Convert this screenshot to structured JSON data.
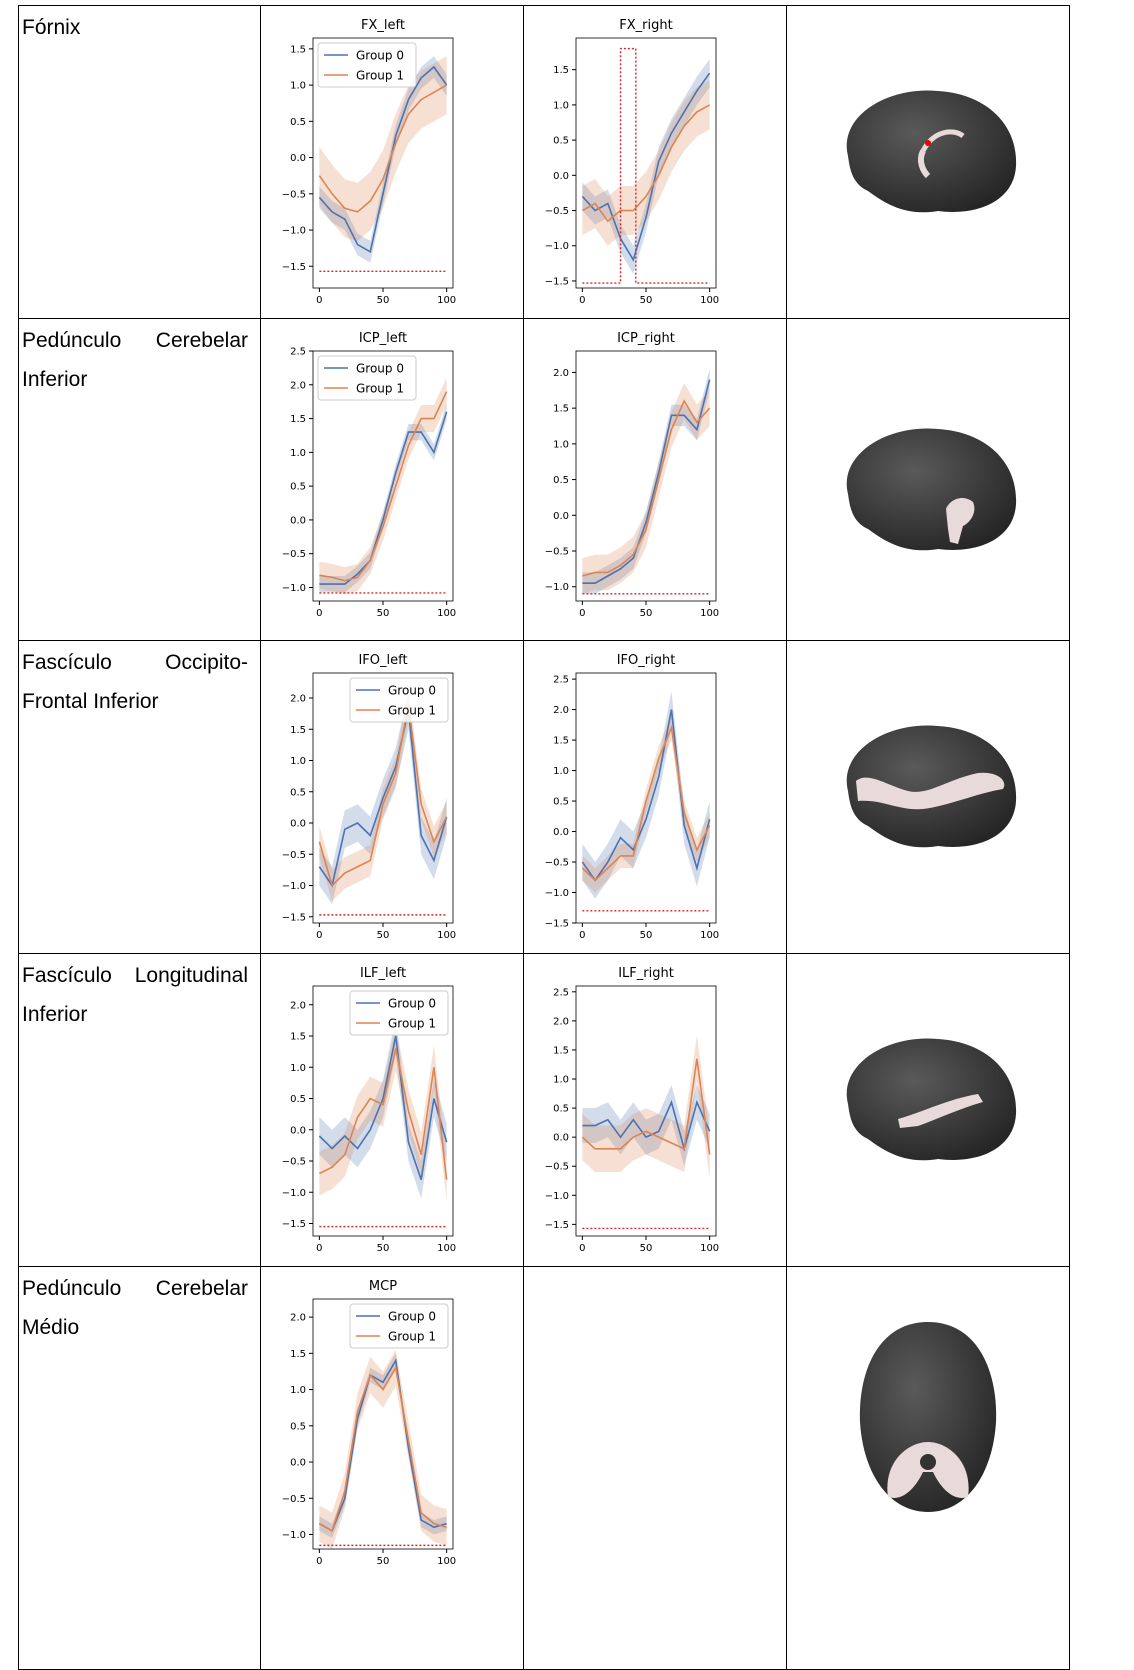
{
  "table": {
    "rows": [
      {
        "label": "Fórnix"
      },
      {
        "label": "Pedúnculo Cerebelar Inferior"
      },
      {
        "label": "Fascículo Occipito-Frontal Inferior"
      },
      {
        "label": "Fascículo Longitudinal Inferior"
      },
      {
        "label": "Pedúnculo Cerebelar Médio"
      }
    ]
  },
  "chart_data": [
    {
      "type": "line",
      "title": "FX_left",
      "x": [
        0,
        10,
        20,
        30,
        40,
        50,
        60,
        70,
        80,
        90,
        100
      ],
      "xlim": [
        -5,
        105
      ],
      "xticks": [
        0,
        50,
        100
      ],
      "ylim": [
        -1.8,
        1.65
      ],
      "yticks": [
        {
          "value": -1.5,
          "label": "−1.5"
        },
        {
          "value": -1,
          "label": "−1.0"
        },
        {
          "value": -0.5,
          "label": "−0.5"
        },
        {
          "value": 0,
          "label": "0.0"
        },
        0.5,
        {
          "value": 1,
          "label": "1.0"
        },
        1.5
      ],
      "legend": "upper left",
      "series": [
        {
          "name": "Group 0",
          "color": "#4c72b0",
          "values": [
            -0.55,
            -0.75,
            -0.85,
            -1.2,
            -1.3,
            -0.5,
            0.3,
            0.8,
            1.1,
            1.25,
            1.0
          ],
          "errors": [
            0.15,
            0.15,
            0.15,
            0.15,
            0.15,
            0.15,
            0.15,
            0.15,
            0.15,
            0.15,
            0.15
          ]
        },
        {
          "name": "Group 1",
          "color": "#dd8452",
          "values": [
            -0.25,
            -0.5,
            -0.7,
            -0.75,
            -0.6,
            -0.3,
            0.2,
            0.6,
            0.8,
            0.9,
            1.0
          ],
          "errors": [
            0.4,
            0.4,
            0.4,
            0.4,
            0.4,
            0.4,
            0.4,
            0.4,
            0.4,
            0.4,
            0.4
          ]
        }
      ],
      "threshold": {
        "color": "#d62728",
        "x": [
          0,
          100
        ],
        "values": [
          -1.57,
          -1.57
        ]
      }
    },
    {
      "type": "line",
      "title": "FX_right",
      "x": [
        0,
        10,
        20,
        30,
        40,
        50,
        60,
        70,
        80,
        90,
        100
      ],
      "xlim": [
        -5,
        105
      ],
      "xticks": [
        0,
        50,
        100
      ],
      "ylim": [
        -1.6,
        1.95
      ],
      "yticks": [
        {
          "value": -1.5,
          "label": "−1.5"
        },
        {
          "value": -1,
          "label": "−1.0"
        },
        {
          "value": -0.5,
          "label": "−0.5"
        },
        {
          "value": 0,
          "label": "0.0"
        },
        0.5,
        {
          "value": 1,
          "label": "1.0"
        },
        1.5
      ],
      "legend": "none",
      "series": [
        {
          "name": "Group 0",
          "color": "#4c72b0",
          "values": [
            -0.3,
            -0.5,
            -0.4,
            -0.9,
            -1.2,
            -0.6,
            0.2,
            0.6,
            0.9,
            1.2,
            1.45
          ],
          "errors": [
            0.2,
            0.2,
            0.2,
            0.2,
            0.2,
            0.2,
            0.2,
            0.2,
            0.2,
            0.2,
            0.2
          ]
        },
        {
          "name": "Group 1",
          "color": "#dd8452",
          "values": [
            -0.5,
            -0.4,
            -0.65,
            -0.5,
            -0.5,
            -0.3,
            0,
            0.4,
            0.7,
            0.9,
            1.0
          ],
          "errors": [
            0.35,
            0.35,
            0.35,
            0.35,
            0.35,
            0.35,
            0.35,
            0.35,
            0.35,
            0.35,
            0.35
          ]
        }
      ],
      "threshold": {
        "color": "#d62728",
        "x": [
          0,
          30,
          30,
          42,
          42,
          100
        ],
        "values": [
          -1.53,
          -1.53,
          1.8,
          1.8,
          -1.53,
          -1.53
        ]
      }
    },
    {
      "type": "line",
      "title": "ICP_left",
      "x": [
        0,
        10,
        20,
        30,
        40,
        50,
        60,
        70,
        80,
        90,
        100
      ],
      "xlim": [
        -5,
        105
      ],
      "xticks": [
        0,
        50,
        100
      ],
      "ylim": [
        -1.2,
        2.5
      ],
      "yticks": [
        {
          "value": -1,
          "label": "−1.0"
        },
        {
          "value": -0.5,
          "label": "−0.5"
        },
        {
          "value": 0,
          "label": "0.0"
        },
        0.5,
        {
          "value": 1,
          "label": "1.0"
        },
        1.5,
        {
          "value": 2,
          "label": "2.0"
        },
        2.5
      ],
      "legend": "upper left",
      "series": [
        {
          "name": "Group 0",
          "color": "#4c72b0",
          "values": [
            -0.95,
            -0.95,
            -0.95,
            -0.8,
            -0.6,
            0,
            0.7,
            1.3,
            1.3,
            1.0,
            1.6
          ],
          "errors": [
            0.12,
            0.12,
            0.12,
            0.12,
            0.12,
            0.12,
            0.12,
            0.12,
            0.12,
            0.12,
            0.12
          ]
        },
        {
          "name": "Group 1",
          "color": "#dd8452",
          "values": [
            -0.82,
            -0.85,
            -0.9,
            -0.85,
            -0.6,
            -0.1,
            0.5,
            1.1,
            1.5,
            1.5,
            1.9
          ],
          "errors": [
            0.2,
            0.2,
            0.2,
            0.2,
            0.2,
            0.2,
            0.2,
            0.2,
            0.2,
            0.2,
            0.2
          ]
        }
      ],
      "threshold": {
        "color": "#d62728",
        "x": [
          0,
          100
        ],
        "values": [
          -1.08,
          -1.08
        ]
      }
    },
    {
      "type": "line",
      "title": "ICP_right",
      "x": [
        0,
        10,
        20,
        30,
        40,
        50,
        60,
        70,
        80,
        90,
        100
      ],
      "xlim": [
        -5,
        105
      ],
      "xticks": [
        0,
        50,
        100
      ],
      "ylim": [
        -1.2,
        2.3
      ],
      "yticks": [
        {
          "value": -1,
          "label": "−1.0"
        },
        {
          "value": -0.5,
          "label": "−0.5"
        },
        {
          "value": 0,
          "label": "0.0"
        },
        0.5,
        {
          "value": 1,
          "label": "1.0"
        },
        1.5,
        {
          "value": 2,
          "label": "2.0"
        }
      ],
      "legend": "none",
      "series": [
        {
          "name": "Group 0",
          "color": "#4c72b0",
          "values": [
            -0.95,
            -0.95,
            -0.85,
            -0.75,
            -0.6,
            -0.1,
            0.6,
            1.4,
            1.4,
            1.2,
            1.9
          ],
          "errors": [
            0.15,
            0.15,
            0.15,
            0.15,
            0.15,
            0.15,
            0.15,
            0.15,
            0.15,
            0.15,
            0.15
          ]
        },
        {
          "name": "Group 1",
          "color": "#dd8452",
          "values": [
            -0.85,
            -0.8,
            -0.8,
            -0.7,
            -0.55,
            -0.2,
            0.5,
            1.2,
            1.6,
            1.3,
            1.5
          ],
          "errors": [
            0.25,
            0.25,
            0.25,
            0.25,
            0.25,
            0.25,
            0.25,
            0.25,
            0.25,
            0.25,
            0.25
          ]
        }
      ],
      "threshold": {
        "color": "#d62728",
        "x": [
          0,
          100
        ],
        "values": [
          -1.1,
          -1.1
        ]
      }
    },
    {
      "type": "line",
      "title": "IFO_left",
      "x": [
        0,
        10,
        20,
        30,
        40,
        50,
        60,
        70,
        80,
        90,
        100
      ],
      "xlim": [
        -5,
        105
      ],
      "xticks": [
        0,
        50,
        100
      ],
      "ylim": [
        -1.6,
        2.4
      ],
      "yticks": [
        {
          "value": -1.5,
          "label": "−1.5"
        },
        {
          "value": -1,
          "label": "−1.0"
        },
        {
          "value": -0.5,
          "label": "−0.5"
        },
        {
          "value": 0,
          "label": "0.0"
        },
        0.5,
        {
          "value": 1,
          "label": "1.0"
        },
        1.5,
        {
          "value": 2,
          "label": "2.0"
        }
      ],
      "legend": "upper right",
      "series": [
        {
          "name": "Group 0",
          "color": "#4c72b0",
          "values": [
            -0.7,
            -1.0,
            -0.1,
            0,
            -0.2,
            0.4,
            0.9,
            1.8,
            -0.2,
            -0.6,
            0.1
          ],
          "errors": [
            0.3,
            0.3,
            0.3,
            0.3,
            0.3,
            0.3,
            0.3,
            0.3,
            0.3,
            0.3,
            0.3
          ]
        },
        {
          "name": "Group 1",
          "color": "#dd8452",
          "values": [
            -0.3,
            -1.0,
            -0.8,
            -0.7,
            -0.6,
            0.3,
            0.8,
            1.9,
            0.3,
            -0.3,
            0.1
          ],
          "errors": [
            0.25,
            0.25,
            0.25,
            0.25,
            0.25,
            0.25,
            0.25,
            0.25,
            0.25,
            0.25,
            0.25
          ]
        }
      ],
      "threshold": {
        "color": "#d62728",
        "x": [
          0,
          100
        ],
        "values": [
          -1.47,
          -1.47
        ]
      }
    },
    {
      "type": "line",
      "title": "IFO_right",
      "x": [
        0,
        10,
        20,
        30,
        40,
        50,
        60,
        70,
        80,
        90,
        100
      ],
      "xlim": [
        -5,
        105
      ],
      "xticks": [
        0,
        50,
        100
      ],
      "ylim": [
        -1.5,
        2.6
      ],
      "yticks": [
        {
          "value": -1.5,
          "label": "−1.5"
        },
        {
          "value": -1,
          "label": "−1.0"
        },
        {
          "value": -0.5,
          "label": "−0.5"
        },
        {
          "value": 0,
          "label": "0.0"
        },
        0.5,
        {
          "value": 1,
          "label": "1.0"
        },
        1.5,
        {
          "value": 2,
          "label": "2.0"
        },
        2.5
      ],
      "legend": "none",
      "series": [
        {
          "name": "Group 0",
          "color": "#4c72b0",
          "values": [
            -0.5,
            -0.8,
            -0.5,
            -0.1,
            -0.3,
            0.2,
            0.9,
            2.0,
            0.1,
            -0.6,
            0.2
          ],
          "errors": [
            0.3,
            0.3,
            0.3,
            0.3,
            0.3,
            0.3,
            0.3,
            0.3,
            0.3,
            0.3,
            0.3
          ]
        },
        {
          "name": "Group 1",
          "color": "#dd8452",
          "values": [
            -0.6,
            -0.8,
            -0.6,
            -0.4,
            -0.4,
            0.5,
            1.2,
            1.7,
            0.3,
            -0.3,
            0.1
          ],
          "errors": [
            0.2,
            0.2,
            0.2,
            0.2,
            0.2,
            0.2,
            0.2,
            0.2,
            0.2,
            0.2,
            0.2
          ]
        }
      ],
      "threshold": {
        "color": "#d62728",
        "x": [
          0,
          100
        ],
        "values": [
          -1.3,
          -1.3
        ]
      }
    },
    {
      "type": "line",
      "title": "ILF_left",
      "x": [
        0,
        10,
        20,
        30,
        40,
        50,
        60,
        70,
        80,
        90,
        100
      ],
      "xlim": [
        -5,
        105
      ],
      "xticks": [
        0,
        50,
        100
      ],
      "ylim": [
        -1.7,
        2.3
      ],
      "yticks": [
        {
          "value": -1.5,
          "label": "−1.5"
        },
        {
          "value": -1,
          "label": "−1.0"
        },
        {
          "value": -0.5,
          "label": "−0.5"
        },
        {
          "value": 0,
          "label": "0.0"
        },
        0.5,
        {
          "value": 1,
          "label": "1.0"
        },
        1.5,
        {
          "value": 2,
          "label": "2.0"
        }
      ],
      "legend": "upper right",
      "series": [
        {
          "name": "Group 0",
          "color": "#4c72b0",
          "values": [
            -0.1,
            -0.3,
            -0.1,
            -0.3,
            0,
            0.5,
            1.5,
            -0.2,
            -0.8,
            0.5,
            -0.2
          ],
          "errors": [
            0.3,
            0.3,
            0.3,
            0.3,
            0.3,
            0.3,
            0.3,
            0.3,
            0.3,
            0.3,
            0.3
          ]
        },
        {
          "name": "Group 1",
          "color": "#dd8452",
          "values": [
            -0.7,
            -0.6,
            -0.4,
            0.2,
            0.5,
            0.4,
            1.3,
            0.3,
            -0.4,
            1.0,
            -0.8
          ],
          "errors": [
            0.35,
            0.35,
            0.35,
            0.35,
            0.35,
            0.35,
            0.35,
            0.35,
            0.35,
            0.35,
            0.35
          ]
        }
      ],
      "threshold": {
        "color": "#d62728",
        "x": [
          0,
          100
        ],
        "values": [
          -1.55,
          -1.55
        ]
      }
    },
    {
      "type": "line",
      "title": "ILF_right",
      "x": [
        0,
        10,
        20,
        30,
        40,
        50,
        60,
        70,
        80,
        90,
        100
      ],
      "xlim": [
        -5,
        105
      ],
      "xticks": [
        0,
        50,
        100
      ],
      "ylim": [
        -1.7,
        2.6
      ],
      "yticks": [
        {
          "value": -1.5,
          "label": "−1.5"
        },
        {
          "value": -1,
          "label": "−1.0"
        },
        {
          "value": -0.5,
          "label": "−0.5"
        },
        {
          "value": 0,
          "label": "0.0"
        },
        0.5,
        {
          "value": 1,
          "label": "1.0"
        },
        1.5,
        {
          "value": 2,
          "label": "2.0"
        },
        2.5
      ],
      "legend": "none",
      "series": [
        {
          "name": "Group 0",
          "color": "#4c72b0",
          "values": [
            0.2,
            0.2,
            0.3,
            0,
            0.3,
            0,
            0.1,
            0.6,
            -0.2,
            0.6,
            0.1
          ],
          "errors": [
            0.3,
            0.3,
            0.3,
            0.3,
            0.3,
            0.3,
            0.3,
            0.3,
            0.3,
            0.3,
            0.3
          ]
        },
        {
          "name": "Group 1",
          "color": "#dd8452",
          "values": [
            0,
            -0.2,
            -0.2,
            -0.2,
            0,
            0.1,
            0,
            -0.1,
            -0.2,
            1.35,
            -0.3
          ],
          "errors": [
            0.4,
            0.4,
            0.4,
            0.4,
            0.4,
            0.4,
            0.4,
            0.4,
            0.4,
            0.4,
            0.4
          ]
        }
      ],
      "threshold": {
        "color": "#d62728",
        "x": [
          0,
          100
        ],
        "values": [
          -1.57,
          -1.57
        ]
      }
    },
    {
      "type": "line",
      "title": "MCP",
      "x": [
        0,
        10,
        20,
        30,
        40,
        50,
        60,
        70,
        80,
        90,
        100
      ],
      "xlim": [
        -5,
        105
      ],
      "xticks": [
        0,
        50,
        100
      ],
      "ylim": [
        -1.2,
        2.25
      ],
      "yticks": [
        {
          "value": -1,
          "label": "−1.0"
        },
        {
          "value": -0.5,
          "label": "−0.5"
        },
        {
          "value": 0,
          "label": "0.0"
        },
        0.5,
        {
          "value": 1,
          "label": "1.0"
        },
        1.5,
        {
          "value": 2,
          "label": "2.0"
        }
      ],
      "legend": "upper right",
      "series": [
        {
          "name": "Group 0",
          "color": "#4c72b0",
          "values": [
            -0.85,
            -0.95,
            -0.5,
            0.6,
            1.2,
            1.1,
            1.4,
            0.2,
            -0.8,
            -0.9,
            -0.85
          ],
          "errors": [
            0.1,
            0.1,
            0.1,
            0.1,
            0.1,
            0.1,
            0.1,
            0.1,
            0.1,
            0.1,
            0.1
          ]
        },
        {
          "name": "Group 1",
          "color": "#dd8452",
          "values": [
            -0.85,
            -0.95,
            -0.4,
            0.7,
            1.2,
            1.0,
            1.3,
            0.3,
            -0.7,
            -0.85,
            -0.9
          ],
          "errors": [
            0.25,
            0.25,
            0.25,
            0.25,
            0.25,
            0.25,
            0.25,
            0.25,
            0.25,
            0.25,
            0.25
          ]
        }
      ],
      "threshold": {
        "color": "#d62728",
        "x": [
          0,
          100
        ],
        "values": [
          -1.15,
          -1.15
        ]
      }
    }
  ]
}
